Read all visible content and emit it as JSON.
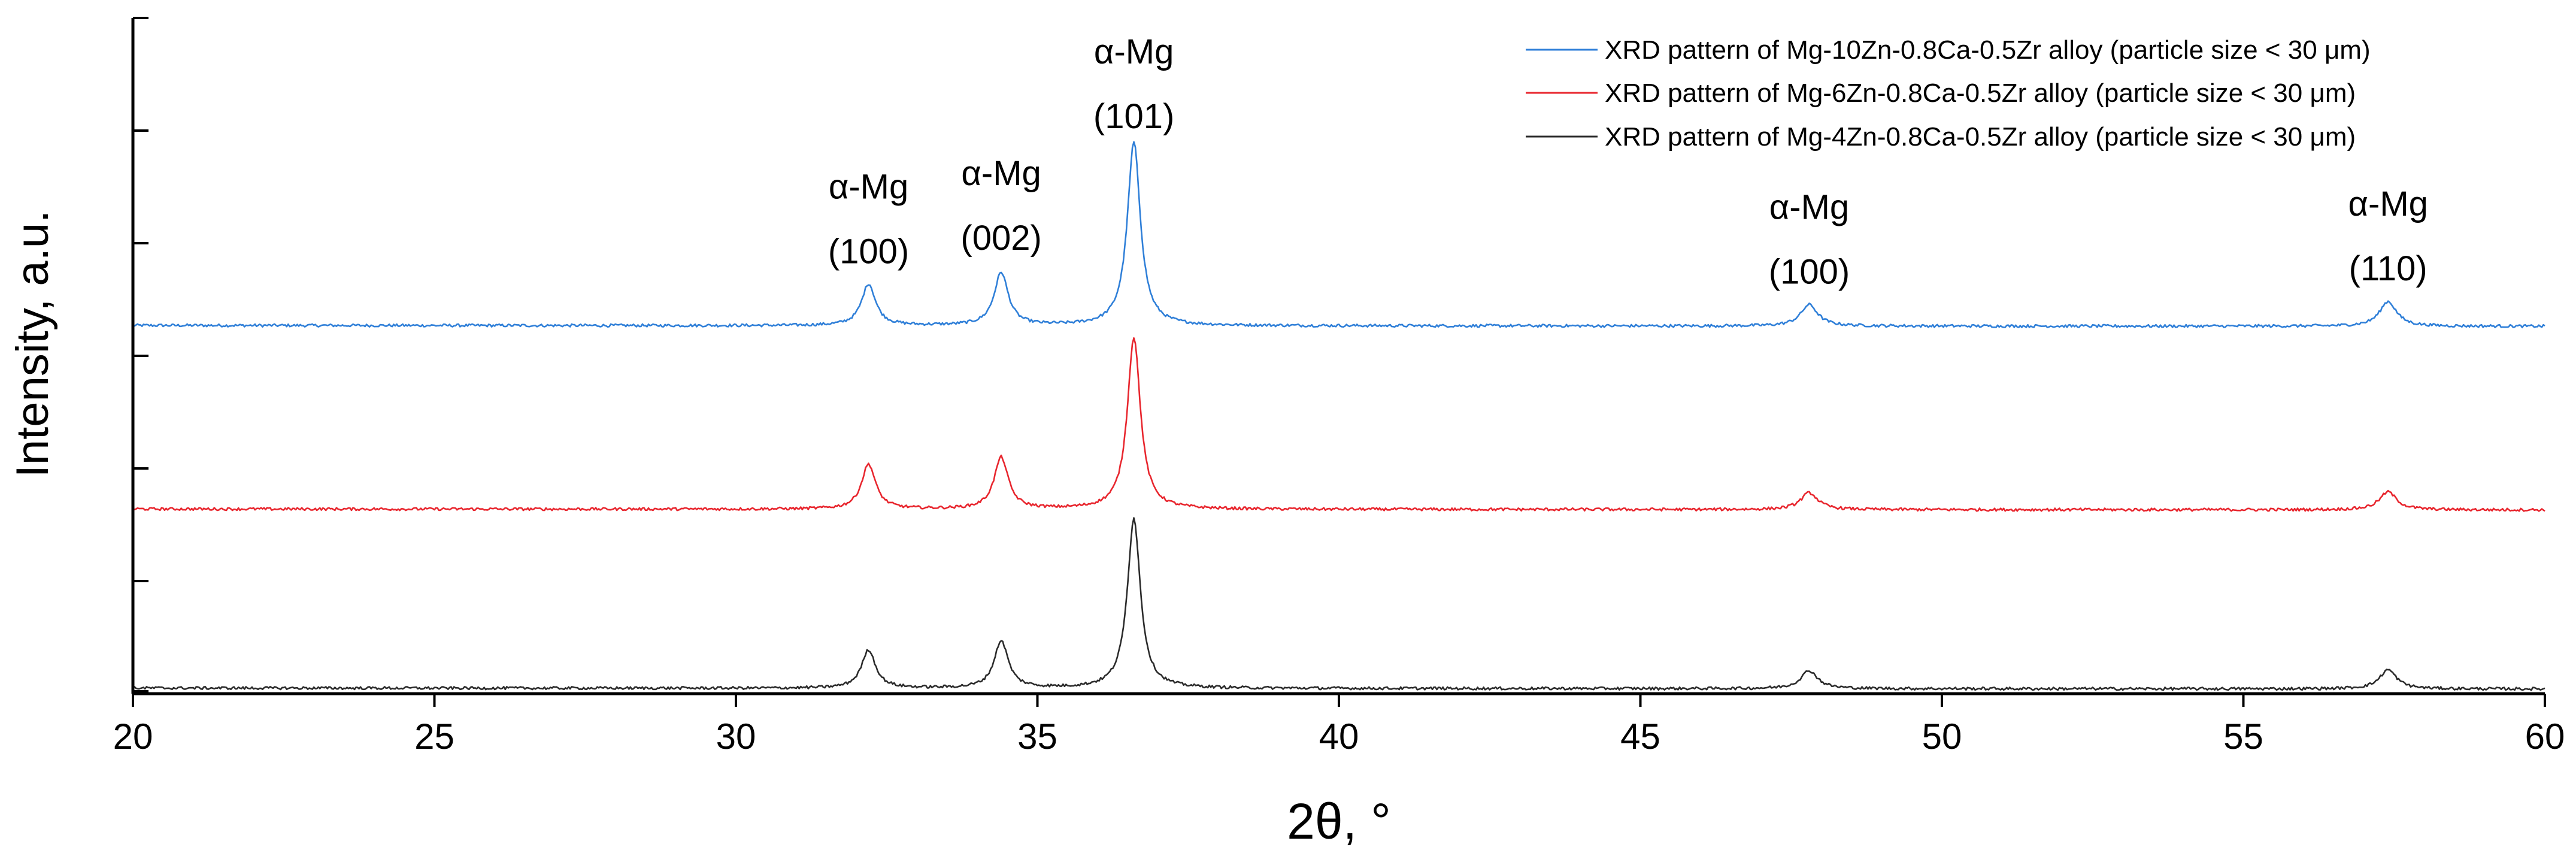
{
  "chart_data": {
    "type": "line",
    "title": "",
    "xlabel": "2θ, °",
    "ylabel": "Intensity, a.u.",
    "xlim": [
      20,
      60
    ],
    "ylim": [
      0,
      6
    ],
    "x_ticks": [
      "20",
      "25",
      "30",
      "35",
      "40",
      "45",
      "50",
      "55",
      "60"
    ],
    "y_ticks_labeled": false,
    "y_tick_count": 7,
    "legend_position": "top-right",
    "series": [
      {
        "name": "XRD pattern of Mg-10Zn-0.8Ca-0.5Zr alloy (particle size < 30 μm)",
        "color": "#2f7fd8",
        "baseline": 3.27,
        "peaks": [
          {
            "two_theta": 32.2,
            "height": 0.37
          },
          {
            "two_theta": 34.4,
            "height": 0.47
          },
          {
            "two_theta": 36.6,
            "height": 1.63
          },
          {
            "two_theta": 47.8,
            "height": 0.19
          },
          {
            "two_theta": 57.4,
            "height": 0.22
          }
        ]
      },
      {
        "name": "XRD pattern of Mg-6Zn-0.8Ca-0.5Zr alloy (particle size < 30 μm)",
        "color": "#e8262e",
        "baseline": 1.64,
        "peaks": [
          {
            "two_theta": 32.2,
            "height": 0.4
          },
          {
            "two_theta": 34.4,
            "height": 0.46
          },
          {
            "two_theta": 36.6,
            "height": 1.53
          },
          {
            "two_theta": 47.8,
            "height": 0.15
          },
          {
            "two_theta": 57.4,
            "height": 0.16
          }
        ]
      },
      {
        "name": "XRD pattern of Mg-4Zn-0.8Ca-0.5Zr alloy (particle size < 30 μm)",
        "color": "#2b2b2b",
        "baseline": 0.05,
        "peaks": [
          {
            "two_theta": 32.2,
            "height": 0.34
          },
          {
            "two_theta": 34.4,
            "height": 0.42
          },
          {
            "two_theta": 36.6,
            "height": 1.51
          },
          {
            "two_theta": 47.8,
            "height": 0.16
          },
          {
            "two_theta": 57.4,
            "height": 0.17
          }
        ]
      }
    ],
    "annotations": [
      {
        "phase": "α-Mg",
        "plane": "(100)",
        "two_theta": 32.2,
        "level": 3.8
      },
      {
        "phase": "α-Mg",
        "plane": "(002)",
        "two_theta": 34.4,
        "level": 3.92
      },
      {
        "phase": "α-Mg",
        "plane": "(101)",
        "two_theta": 36.6,
        "level": 5.0
      },
      {
        "phase": "α-Mg",
        "plane": "(100)",
        "two_theta": 47.8,
        "level": 3.62
      },
      {
        "phase": "α-Mg",
        "plane": "(110)",
        "two_theta": 57.4,
        "level": 3.65
      }
    ]
  }
}
